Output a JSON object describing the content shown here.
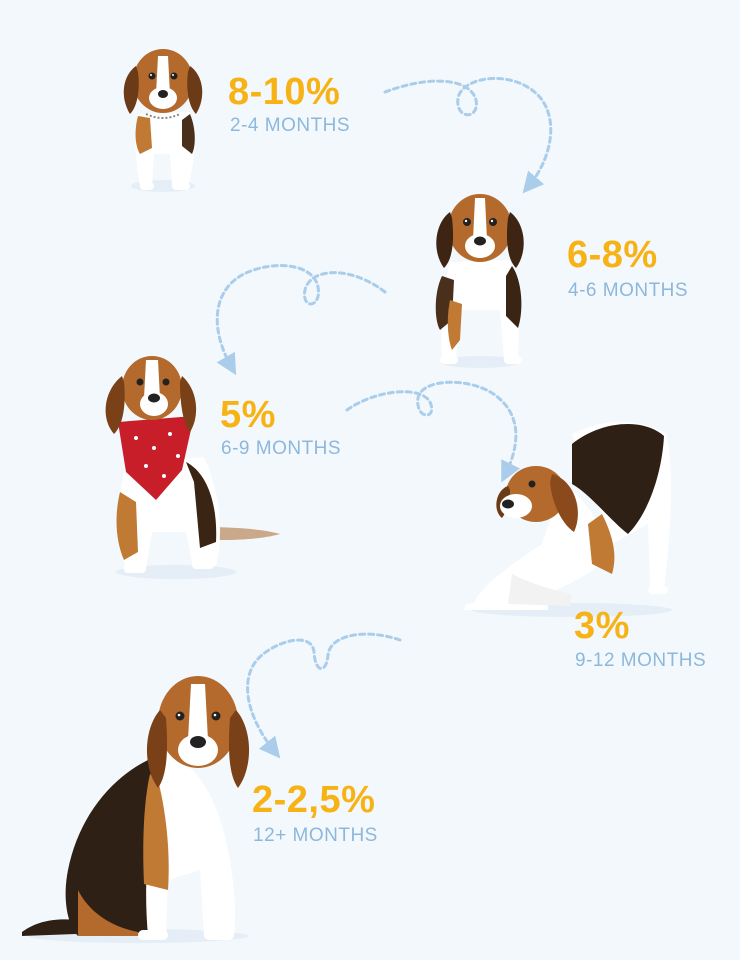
{
  "colors": {
    "background": "#f3f8fc",
    "percent": "#f7b216",
    "age": "#8db8dc",
    "arrow": "#a9cdea"
  },
  "steps": [
    {
      "percent": "8-10%",
      "age": "2-4 MONTHS",
      "illustration": "beagle-puppy-small"
    },
    {
      "percent": "6-8%",
      "age": "4-6 MONTHS",
      "illustration": "beagle-puppy-standing"
    },
    {
      "percent": "5%",
      "age": "6-9 MONTHS",
      "illustration": "beagle-red-bandana"
    },
    {
      "percent": "3%",
      "age": "9-12 MONTHS",
      "illustration": "beagle-play-bow"
    },
    {
      "percent": "2-2,5%",
      "age": "12+ MONTHS",
      "illustration": "beagle-adult-sitting"
    }
  ]
}
